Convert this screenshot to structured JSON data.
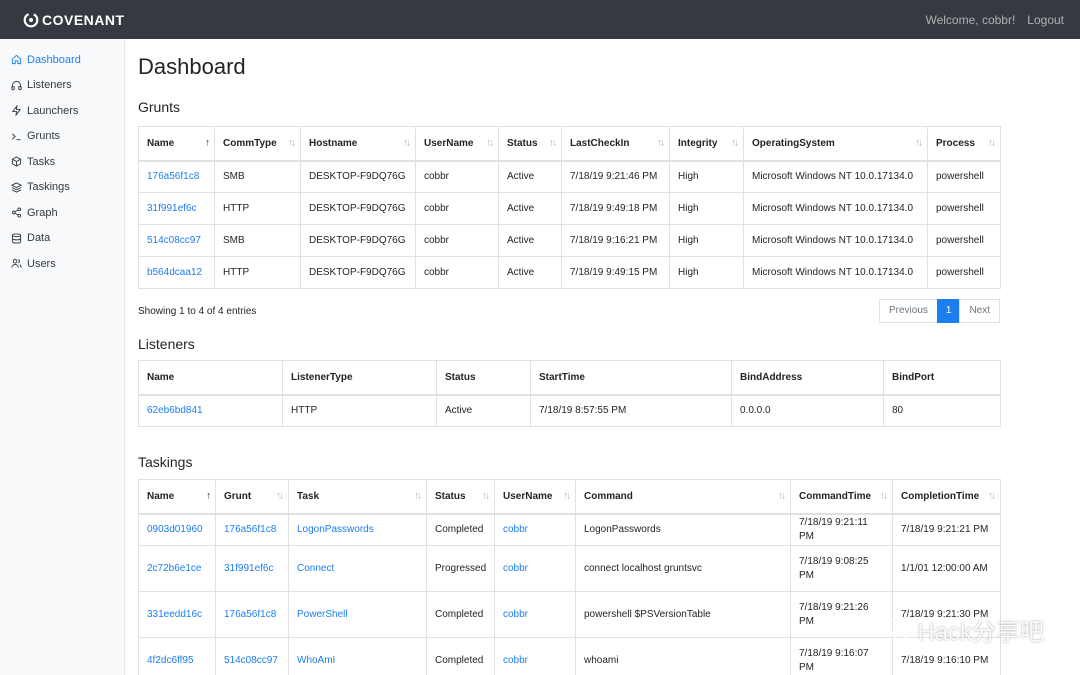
{
  "app": {
    "brand": "COVENANT",
    "welcome": "Welcome, cobbr!",
    "logout": "Logout"
  },
  "sidebar": {
    "items": [
      {
        "label": "Dashboard",
        "icon": "home-icon",
        "active": true
      },
      {
        "label": "Listeners",
        "icon": "headphones-icon"
      },
      {
        "label": "Launchers",
        "icon": "zap-icon"
      },
      {
        "label": "Grunts",
        "icon": "terminal-icon"
      },
      {
        "label": "Tasks",
        "icon": "box-icon"
      },
      {
        "label": "Taskings",
        "icon": "layers-icon"
      },
      {
        "label": "Graph",
        "icon": "share-icon"
      },
      {
        "label": "Data",
        "icon": "database-icon"
      },
      {
        "label": "Users",
        "icon": "users-icon"
      }
    ]
  },
  "page": {
    "title": "Dashboard"
  },
  "grunts": {
    "title": "Grunts",
    "columns": [
      "Name",
      "CommType",
      "Hostname",
      "UserName",
      "Status",
      "LastCheckIn",
      "Integrity",
      "OperatingSystem",
      "Process"
    ],
    "rows": [
      [
        "176a56f1c8",
        "SMB",
        "DESKTOP-F9DQ76G",
        "cobbr",
        "Active",
        "7/18/19 9:21:46 PM",
        "High",
        "Microsoft Windows NT 10.0.17134.0",
        "powershell"
      ],
      [
        "31f991ef6c",
        "HTTP",
        "DESKTOP-F9DQ76G",
        "cobbr",
        "Active",
        "7/18/19 9:49:18 PM",
        "High",
        "Microsoft Windows NT 10.0.17134.0",
        "powershell"
      ],
      [
        "514c08cc97",
        "SMB",
        "DESKTOP-F9DQ76G",
        "cobbr",
        "Active",
        "7/18/19 9:16:21 PM",
        "High",
        "Microsoft Windows NT 10.0.17134.0",
        "powershell"
      ],
      [
        "b564dcaa12",
        "HTTP",
        "DESKTOP-F9DQ76G",
        "cobbr",
        "Active",
        "7/18/19 9:49:15 PM",
        "High",
        "Microsoft Windows NT 10.0.17134.0",
        "powershell"
      ]
    ],
    "info": "Showing 1 to 4 of 4 entries",
    "pager": {
      "previous": "Previous",
      "current": "1",
      "next": "Next"
    }
  },
  "listeners": {
    "title": "Listeners",
    "columns": [
      "Name",
      "ListenerType",
      "Status",
      "StartTime",
      "BindAddress",
      "BindPort"
    ],
    "rows": [
      [
        "62eb6bd841",
        "HTTP",
        "Active",
        "7/18/19 8:57:55 PM",
        "0.0.0.0",
        "80"
      ]
    ]
  },
  "taskings": {
    "title": "Taskings",
    "columns": [
      "Name",
      "Grunt",
      "Task",
      "Status",
      "UserName",
      "Command",
      "CommandTime",
      "CompletionTime"
    ],
    "rows": [
      [
        "0903d01960",
        "176a56f1c8",
        "LogonPasswords",
        "Completed",
        "cobbr",
        "LogonPasswords",
        "7/18/19 9:21:11 PM",
        "7/18/19 9:21:21 PM"
      ],
      [
        "2c72b6e1ce",
        "31f991ef6c",
        "Connect",
        "Progressed",
        "cobbr",
        "connect localhost gruntsvc",
        "7/18/19 9:08:25 PM",
        "1/1/01 12:00:00 AM"
      ],
      [
        "331eedd16c",
        "176a56f1c8",
        "PowerShell",
        "Completed",
        "cobbr",
        "powershell $PSVersionTable",
        "7/18/19 9:21:26 PM",
        "7/18/19 9:21:30 PM"
      ],
      [
        "4f2dc6ff95",
        "514c08cc97",
        "WhoAmI",
        "Completed",
        "cobbr",
        "whoami",
        "7/18/19 9:16:07 PM",
        "7/18/19 9:16:10 PM"
      ]
    ]
  },
  "watermark": "Hack分享吧",
  "colors": {
    "topbar": "#343a40",
    "accent": "#1e7ef0",
    "sidebar": "#f8f9fa"
  }
}
